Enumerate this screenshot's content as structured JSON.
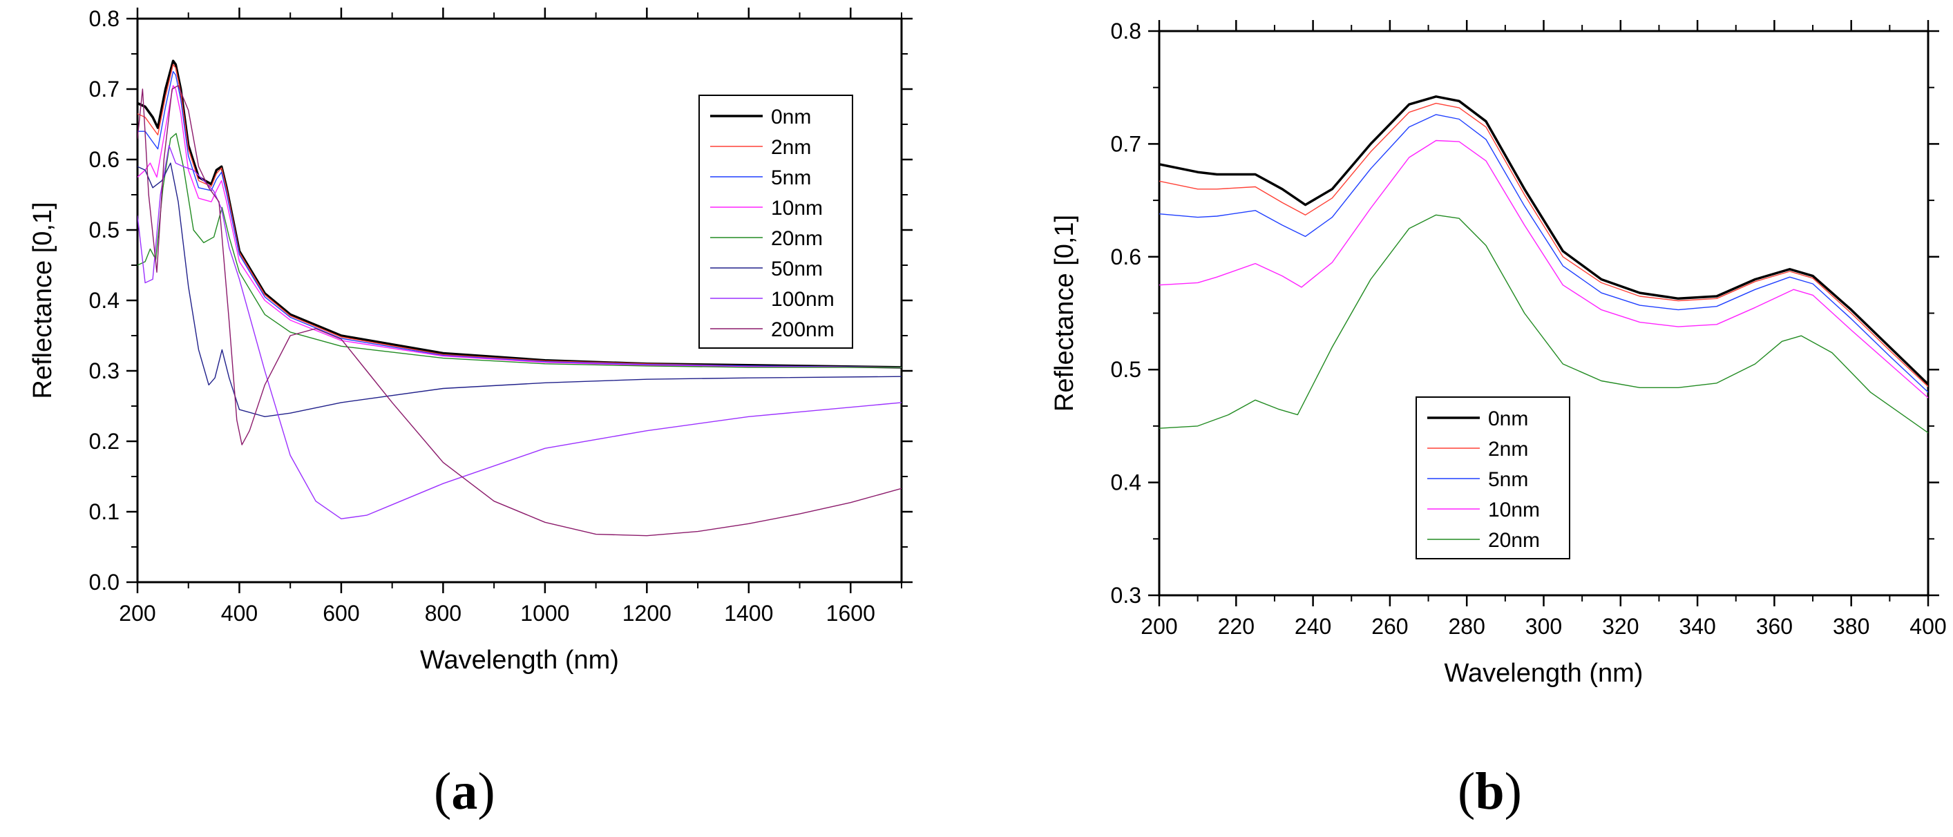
{
  "panel_labels": [
    "a",
    "b"
  ],
  "colors": {
    "0nm": "#000000",
    "2nm": "#ff4136",
    "5nm": "#1f3fff",
    "10nm": "#ff22ff",
    "20nm": "#228b22",
    "50nm": "#20208a",
    "100nm": "#9b30ff",
    "200nm": "#8b1a6b"
  },
  "chart_data": [
    {
      "type": "line",
      "panel": "a",
      "xlabel": "Wavelength (nm)",
      "ylabel": "Reflectance [0,1]",
      "xlim": [
        200,
        1700
      ],
      "ylim": [
        0.0,
        0.8
      ],
      "xticks": [
        200,
        400,
        600,
        800,
        1000,
        1200,
        1400,
        1600
      ],
      "xtick_labels": [
        "200",
        "400",
        "600",
        "800",
        "1000",
        "1200",
        "1400",
        "1600"
      ],
      "yticks": [
        0.0,
        0.1,
        0.2,
        0.3,
        0.4,
        0.5,
        0.6,
        0.7,
        0.8
      ],
      "ytick_labels": [
        "0.0",
        "0.1",
        "0.2",
        "0.3",
        "0.4",
        "0.5",
        "0.6",
        "0.7",
        "0.8"
      ],
      "legend_position": "top-right",
      "series": [
        {
          "name": "0nm",
          "width": 3.5,
          "x": [
            200,
            215,
            230,
            240,
            255,
            270,
            275,
            285,
            300,
            320,
            345,
            355,
            365,
            375,
            400,
            450,
            500,
            600,
            800,
            1000,
            1200,
            1400,
            1700
          ],
          "y": [
            0.68,
            0.675,
            0.66,
            0.645,
            0.7,
            0.74,
            0.735,
            0.7,
            0.62,
            0.575,
            0.565,
            0.585,
            0.59,
            0.56,
            0.47,
            0.41,
            0.38,
            0.35,
            0.325,
            0.315,
            0.31,
            0.308,
            0.305
          ]
        },
        {
          "name": "2nm",
          "width": 1.4,
          "x": [
            200,
            215,
            230,
            240,
            255,
            270,
            275,
            285,
            300,
            320,
            345,
            355,
            365,
            375,
            400,
            450,
            500,
            600,
            800,
            1000,
            1200,
            1400,
            1700
          ],
          "y": [
            0.665,
            0.66,
            0.645,
            0.635,
            0.69,
            0.735,
            0.73,
            0.695,
            0.615,
            0.57,
            0.562,
            0.58,
            0.588,
            0.558,
            0.468,
            0.408,
            0.378,
            0.348,
            0.323,
            0.314,
            0.31,
            0.307,
            0.305
          ]
        },
        {
          "name": "5nm",
          "width": 1.4,
          "x": [
            200,
            215,
            230,
            240,
            255,
            270,
            275,
            285,
            300,
            320,
            345,
            355,
            365,
            375,
            400,
            450,
            500,
            600,
            800,
            1000,
            1200,
            1400,
            1700
          ],
          "y": [
            0.64,
            0.64,
            0.625,
            0.615,
            0.675,
            0.725,
            0.72,
            0.685,
            0.605,
            0.56,
            0.556,
            0.572,
            0.582,
            0.552,
            0.465,
            0.405,
            0.376,
            0.346,
            0.322,
            0.313,
            0.309,
            0.307,
            0.305
          ]
        },
        {
          "name": "10nm",
          "width": 1.4,
          "x": [
            200,
            215,
            225,
            238,
            255,
            270,
            275,
            285,
            300,
            320,
            345,
            355,
            365,
            375,
            400,
            450,
            500,
            600,
            800,
            1000,
            1200,
            1400,
            1700
          ],
          "y": [
            0.575,
            0.585,
            0.595,
            0.575,
            0.645,
            0.705,
            0.7,
            0.665,
            0.585,
            0.545,
            0.54,
            0.556,
            0.57,
            0.54,
            0.455,
            0.4,
            0.372,
            0.343,
            0.321,
            0.312,
            0.308,
            0.306,
            0.305
          ]
        },
        {
          "name": "20nm",
          "width": 1.4,
          "x": [
            200,
            215,
            225,
            236,
            250,
            265,
            276,
            290,
            310,
            330,
            350,
            366,
            380,
            400,
            450,
            500,
            600,
            800,
            1000,
            1200,
            1400,
            1700
          ],
          "y": [
            0.45,
            0.455,
            0.473,
            0.458,
            0.56,
            0.63,
            0.637,
            0.59,
            0.5,
            0.482,
            0.49,
            0.532,
            0.49,
            0.44,
            0.38,
            0.355,
            0.335,
            0.318,
            0.31,
            0.307,
            0.305,
            0.305
          ]
        },
        {
          "name": "50nm",
          "width": 1.4,
          "x": [
            200,
            215,
            230,
            248,
            265,
            280,
            300,
            320,
            340,
            352,
            366,
            380,
            400,
            450,
            500,
            600,
            800,
            1000,
            1200,
            1400,
            1700
          ],
          "y": [
            0.59,
            0.585,
            0.56,
            0.57,
            0.595,
            0.54,
            0.42,
            0.33,
            0.28,
            0.29,
            0.33,
            0.29,
            0.245,
            0.235,
            0.24,
            0.255,
            0.275,
            0.283,
            0.288,
            0.29,
            0.292
          ]
        },
        {
          "name": "100nm",
          "width": 1.4,
          "x": [
            200,
            215,
            230,
            245,
            262,
            275,
            290,
            310,
            330,
            350,
            365,
            380,
            400,
            450,
            500,
            550,
            600,
            650,
            700,
            800,
            1000,
            1200,
            1400,
            1700
          ],
          "y": [
            0.52,
            0.425,
            0.43,
            0.55,
            0.62,
            0.595,
            0.59,
            0.585,
            0.57,
            0.555,
            0.53,
            0.475,
            0.43,
            0.3,
            0.18,
            0.115,
            0.09,
            0.095,
            0.11,
            0.14,
            0.19,
            0.215,
            0.235,
            0.255
          ]
        },
        {
          "name": "200nm",
          "width": 1.4,
          "x": [
            200,
            210,
            222,
            238,
            252,
            268,
            280,
            300,
            320,
            340,
            360,
            380,
            395,
            405,
            420,
            450,
            500,
            550,
            600,
            650,
            700,
            800,
            900,
            1000,
            1100,
            1200,
            1300,
            1400,
            1500,
            1600,
            1700
          ],
          "y": [
            0.63,
            0.7,
            0.55,
            0.44,
            0.6,
            0.7,
            0.705,
            0.67,
            0.59,
            0.56,
            0.54,
            0.37,
            0.23,
            0.195,
            0.215,
            0.28,
            0.35,
            0.36,
            0.345,
            0.3,
            0.255,
            0.17,
            0.115,
            0.085,
            0.068,
            0.066,
            0.072,
            0.083,
            0.097,
            0.113,
            0.133
          ]
        }
      ]
    },
    {
      "type": "line",
      "panel": "b",
      "xlabel": "Wavelength (nm)",
      "ylabel": "Reflectance [0,1]",
      "xlim": [
        200,
        400
      ],
      "ylim": [
        0.3,
        0.8
      ],
      "xticks": [
        200,
        220,
        240,
        260,
        280,
        300,
        320,
        340,
        360,
        380,
        400
      ],
      "xtick_labels": [
        "200",
        "220",
        "240",
        "260",
        "280",
        "300",
        "320",
        "340",
        "360",
        "380",
        "400"
      ],
      "yticks": [
        0.3,
        0.4,
        0.5,
        0.6,
        0.7,
        0.8
      ],
      "ytick_labels": [
        "0.3",
        "0.4",
        "0.5",
        "0.6",
        "0.7",
        "0.8"
      ],
      "legend_position": "bottom-left",
      "series": [
        {
          "name": "0nm",
          "width": 3.5,
          "x": [
            200,
            210,
            215,
            225,
            232,
            238,
            245,
            255,
            265,
            272,
            278,
            285,
            295,
            305,
            315,
            325,
            335,
            345,
            355,
            364,
            370,
            380,
            390,
            400
          ],
          "y": [
            0.682,
            0.675,
            0.673,
            0.673,
            0.66,
            0.646,
            0.66,
            0.7,
            0.735,
            0.742,
            0.738,
            0.72,
            0.66,
            0.605,
            0.58,
            0.568,
            0.563,
            0.565,
            0.58,
            0.589,
            0.583,
            0.553,
            0.52,
            0.487
          ]
        },
        {
          "name": "2nm",
          "width": 1.4,
          "x": [
            200,
            210,
            215,
            225,
            232,
            238,
            245,
            255,
            265,
            272,
            278,
            285,
            295,
            305,
            315,
            325,
            335,
            345,
            355,
            364,
            370,
            380,
            390,
            400
          ],
          "y": [
            0.667,
            0.66,
            0.66,
            0.662,
            0.648,
            0.637,
            0.652,
            0.693,
            0.728,
            0.736,
            0.732,
            0.715,
            0.655,
            0.6,
            0.577,
            0.565,
            0.561,
            0.563,
            0.578,
            0.587,
            0.581,
            0.55,
            0.517,
            0.485
          ]
        },
        {
          "name": "5nm",
          "width": 1.4,
          "x": [
            200,
            210,
            215,
            225,
            232,
            238,
            245,
            255,
            265,
            272,
            278,
            285,
            295,
            305,
            315,
            325,
            335,
            345,
            355,
            364,
            370,
            380,
            390,
            400
          ],
          "y": [
            0.638,
            0.635,
            0.636,
            0.641,
            0.628,
            0.618,
            0.635,
            0.678,
            0.715,
            0.726,
            0.722,
            0.704,
            0.645,
            0.592,
            0.568,
            0.557,
            0.553,
            0.556,
            0.571,
            0.582,
            0.576,
            0.545,
            0.512,
            0.48
          ]
        },
        {
          "name": "10nm",
          "width": 1.4,
          "x": [
            200,
            210,
            215,
            225,
            232,
            237,
            245,
            255,
            265,
            272,
            278,
            285,
            295,
            305,
            315,
            325,
            335,
            345,
            355,
            365,
            370,
            380,
            390,
            400
          ],
          "y": [
            0.575,
            0.577,
            0.582,
            0.594,
            0.583,
            0.573,
            0.595,
            0.643,
            0.688,
            0.703,
            0.702,
            0.685,
            0.628,
            0.575,
            0.553,
            0.542,
            0.538,
            0.54,
            0.555,
            0.571,
            0.566,
            0.535,
            0.505,
            0.475
          ]
        },
        {
          "name": "20nm",
          "width": 1.4,
          "x": [
            200,
            210,
            218,
            225,
            231,
            236,
            245,
            255,
            265,
            272,
            278,
            285,
            295,
            305,
            315,
            325,
            335,
            345,
            355,
            362,
            367,
            375,
            385,
            400
          ],
          "y": [
            0.448,
            0.45,
            0.46,
            0.473,
            0.465,
            0.46,
            0.52,
            0.58,
            0.625,
            0.637,
            0.634,
            0.61,
            0.55,
            0.505,
            0.49,
            0.484,
            0.484,
            0.488,
            0.505,
            0.525,
            0.53,
            0.515,
            0.48,
            0.444
          ]
        }
      ]
    }
  ]
}
